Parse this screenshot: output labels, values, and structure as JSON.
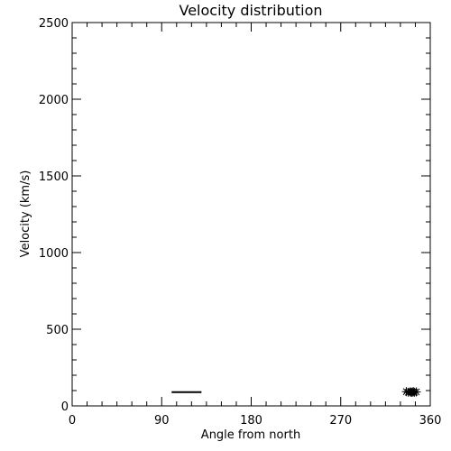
{
  "chart_data": {
    "type": "scatter",
    "title": "Velocity distribution",
    "xlabel": "Angle from north",
    "ylabel": "Velocity (km/s)",
    "xlim": [
      0,
      360
    ],
    "ylim": [
      0,
      2500
    ],
    "xticks": [
      0,
      90,
      180,
      270,
      360
    ],
    "xtick_labels": [
      "0",
      "90",
      "180",
      "270",
      "360"
    ],
    "x_minor_step": 15,
    "yticks": [
      0,
      500,
      1000,
      1500,
      2000,
      2500
    ],
    "ytick_labels": [
      "0",
      "500",
      "1000",
      "1500",
      "2000",
      "2500"
    ],
    "y_minor_step": 100,
    "grid": false,
    "color": "#000000",
    "segment": {
      "x": [
        100,
        130
      ],
      "y": 90
    },
    "points": [
      {
        "x": 336,
        "y": 93
      },
      {
        "x": 338,
        "y": 89
      },
      {
        "x": 340,
        "y": 92
      },
      {
        "x": 341,
        "y": 88
      },
      {
        "x": 342,
        "y": 90
      },
      {
        "x": 343,
        "y": 93
      },
      {
        "x": 344,
        "y": 89
      },
      {
        "x": 346,
        "y": 91
      }
    ]
  }
}
